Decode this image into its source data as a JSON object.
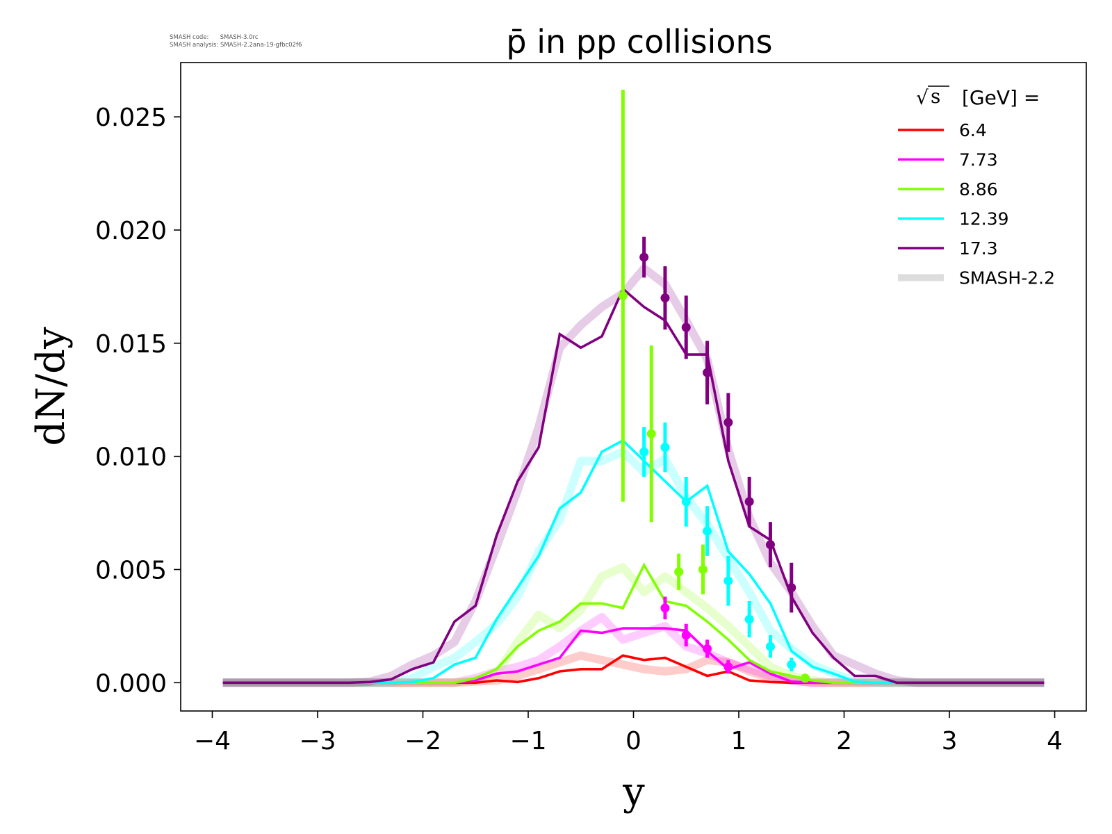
{
  "meta": {
    "code_line": "SMASH code:      SMASH-3.0rc",
    "analysis_line": "SMASH analysis: SMASH-2.2ana-19-gfbc02f6"
  },
  "chart_data": {
    "type": "line",
    "title": "p̄ in pp collisions",
    "xlabel": "y",
    "ylabel": "dN/dy",
    "xlim": [
      -4.3,
      4.3
    ],
    "ylim": [
      -0.00125,
      0.0274
    ],
    "xticks": [
      -4,
      -3,
      -2,
      -1,
      0,
      1,
      2,
      3,
      4
    ],
    "xtick_labels": [
      "−4",
      "−3",
      "−2",
      "−1",
      "0",
      "1",
      "2",
      "3",
      "4"
    ],
    "yticks": [
      0.0,
      0.005,
      0.01,
      0.015,
      0.02,
      0.025
    ],
    "ytick_labels": [
      "0.000",
      "0.005",
      "0.010",
      "0.015",
      "0.020",
      "0.025"
    ],
    "grid": false,
    "legend": {
      "placement": "top-right",
      "title_sqrt": "s",
      "title_text": "[GeV] =",
      "entries": [
        "6.4",
        "7.73",
        "8.86",
        "12.39",
        "17.3",
        "SMASH-2.2"
      ]
    },
    "x": [
      -3.9,
      -3.7,
      -3.5,
      -3.3,
      -3.1,
      -2.9,
      -2.7,
      -2.5,
      -2.3,
      -2.1,
      -1.9,
      -1.7,
      -1.5,
      -1.3,
      -1.1,
      -0.9,
      -0.7,
      -0.5,
      -0.3,
      -0.1,
      0.1,
      0.3,
      0.5,
      0.7,
      0.9,
      1.1,
      1.3,
      1.5,
      1.7,
      1.9,
      2.1,
      2.3,
      2.5,
      2.7,
      2.9,
      3.1,
      3.3,
      3.5,
      3.7,
      3.9
    ],
    "series": [
      {
        "name": "6.4",
        "color": "#ff0000",
        "values": [
          0,
          0,
          0,
          0,
          0,
          0,
          0,
          0,
          0,
          0,
          0,
          0,
          0,
          0.0001,
          3e-05,
          0.0002,
          0.0005,
          0.0006,
          0.0006,
          0.0012,
          0.001,
          0.0011,
          0.0007,
          0.0003,
          0.0005,
          0.0001,
          3e-05,
          0,
          0,
          0,
          0,
          0,
          0,
          0,
          0,
          0,
          0,
          0,
          0,
          0
        ],
        "smash22": [
          0,
          0,
          0,
          0,
          0,
          0,
          0,
          0,
          0,
          0,
          0,
          0,
          5e-05,
          0.0001,
          0.0003,
          0.0006,
          0.0009,
          0.0012,
          0.001,
          0.0008,
          0.0006,
          0.0005,
          0.0006,
          0.001,
          0.0009,
          0.0005,
          0.0002,
          0.0001,
          0,
          0,
          0,
          0,
          0,
          0,
          0,
          0,
          0,
          0,
          0,
          0
        ],
        "points": []
      },
      {
        "name": "7.73",
        "color": "#ff00ff",
        "values": [
          0,
          0,
          0,
          0,
          0,
          0,
          0,
          0,
          0,
          0,
          0,
          0,
          0.0001,
          0.0004,
          0.0005,
          0.0008,
          0.0011,
          0.0023,
          0.0022,
          0.0024,
          0.0024,
          0.0024,
          0.0023,
          0.0014,
          0.0006,
          0.0009,
          0.0004,
          5e-05,
          0,
          0,
          0,
          0,
          0,
          0,
          0,
          0,
          0,
          0,
          0,
          0
        ],
        "smash22": [
          0,
          0,
          0,
          0,
          0,
          0,
          0,
          0,
          0,
          0,
          0,
          0,
          0.0002,
          0.0005,
          0.0007,
          0.001,
          0.0016,
          0.0023,
          0.0029,
          0.0019,
          0.0022,
          0.0025,
          0.0016,
          0.0013,
          0.0009,
          0.0006,
          0.0003,
          0.0001,
          0,
          0,
          0,
          0,
          0,
          0,
          0,
          0,
          0,
          0,
          0,
          0
        ],
        "points": [
          {
            "x": 0.3,
            "y": 0.0033,
            "err": 0.0005
          },
          {
            "x": 0.5,
            "y": 0.0021,
            "err": 0.0005
          },
          {
            "x": 0.7,
            "y": 0.0015,
            "err": 0.0004
          },
          {
            "x": 0.9,
            "y": 0.0007,
            "err": 0.0003
          }
        ]
      },
      {
        "name": "8.86",
        "color": "#80ff00",
        "values": [
          0,
          0,
          0,
          0,
          0,
          0,
          0,
          0,
          0,
          0,
          0,
          0,
          0.0002,
          0.0006,
          0.0016,
          0.0023,
          0.0027,
          0.0035,
          0.0035,
          0.0033,
          0.0052,
          0.0036,
          0.0034,
          0.0027,
          0.0019,
          0.001,
          0.0005,
          0.0003,
          0.0001,
          0,
          0,
          0,
          0,
          0,
          0,
          0,
          0,
          0,
          0,
          0
        ],
        "smash22": [
          0,
          0,
          0,
          0,
          0,
          0,
          0,
          0,
          0,
          0,
          0,
          0,
          0.0001,
          0.0004,
          0.0018,
          0.003,
          0.0024,
          0.0032,
          0.0047,
          0.0051,
          0.004,
          0.0047,
          0.004,
          0.0033,
          0.0025,
          0.0016,
          0.0007,
          0.0003,
          0.0001,
          0,
          0,
          0,
          0,
          0,
          0,
          0,
          0,
          0,
          0,
          0
        ],
        "points": [
          {
            "x": -0.1,
            "y": 0.0171,
            "err": 0.0091
          },
          {
            "x": 0.17,
            "y": 0.011,
            "err": 0.0039
          },
          {
            "x": 0.43,
            "y": 0.0049,
            "err": 0.0008
          },
          {
            "x": 0.66,
            "y": 0.005,
            "err": 0.0011
          },
          {
            "x": 1.63,
            "y": 0.0002,
            "err": 0.0001
          }
        ]
      },
      {
        "name": "12.39",
        "color": "#00ffff",
        "values": [
          0,
          0,
          0,
          0,
          0,
          0,
          0,
          0,
          0,
          3e-05,
          0.0002,
          0.0008,
          0.0011,
          0.0028,
          0.0042,
          0.0056,
          0.0077,
          0.0084,
          0.0102,
          0.0107,
          0.0098,
          0.0089,
          0.008,
          0.0087,
          0.0058,
          0.0048,
          0.0035,
          0.0014,
          0.0007,
          0.0004,
          5e-05,
          0,
          0,
          0,
          0,
          0,
          0,
          0,
          0,
          0
        ],
        "smash22": [
          0,
          0,
          0,
          0,
          0,
          0,
          0,
          0,
          0,
          0.0002,
          0.0007,
          0.0011,
          0.0018,
          0.0026,
          0.0038,
          0.0058,
          0.0072,
          0.0098,
          0.0098,
          0.0102,
          0.0093,
          0.0099,
          0.0082,
          0.007,
          0.0055,
          0.004,
          0.0023,
          0.0015,
          0.0008,
          0.0004,
          0.0001,
          0,
          0,
          0,
          0,
          0,
          0,
          0,
          0,
          0
        ],
        "points": [
          {
            "x": 0.1,
            "y": 0.0102,
            "err": 0.0011
          },
          {
            "x": 0.3,
            "y": 0.0104,
            "err": 0.0011
          },
          {
            "x": 0.5,
            "y": 0.008,
            "err": 0.0011
          },
          {
            "x": 0.7,
            "y": 0.0067,
            "err": 0.0011
          },
          {
            "x": 0.9,
            "y": 0.0045,
            "err": 0.0011
          },
          {
            "x": 1.1,
            "y": 0.0028,
            "err": 0.0008
          },
          {
            "x": 1.3,
            "y": 0.0016,
            "err": 0.0005
          },
          {
            "x": 1.5,
            "y": 0.0008,
            "err": 0.0003
          }
        ]
      },
      {
        "name": "17.3",
        "color": "#800080",
        "values": [
          0,
          0,
          0,
          0,
          0,
          0,
          0,
          3e-05,
          0.00015,
          0.0006,
          0.0009,
          0.0027,
          0.0034,
          0.0065,
          0.0089,
          0.0104,
          0.0154,
          0.0148,
          0.0153,
          0.0174,
          0.0166,
          0.016,
          0.0145,
          0.0145,
          0.0098,
          0.0069,
          0.0063,
          0.0038,
          0.0022,
          0.0011,
          0.0003,
          0.0003,
          0,
          0,
          0,
          0,
          0,
          0,
          0,
          0
        ],
        "smash22": [
          0,
          0,
          0,
          0,
          0,
          0,
          0,
          5e-05,
          0.0003,
          0.0008,
          0.0012,
          0.0018,
          0.0036,
          0.006,
          0.0085,
          0.0113,
          0.0148,
          0.0158,
          0.0166,
          0.0172,
          0.0183,
          0.0176,
          0.016,
          0.0143,
          0.0103,
          0.0073,
          0.0053,
          0.004,
          0.0025,
          0.0012,
          0.0008,
          0.0004,
          0.0001,
          0,
          0,
          0,
          0,
          0,
          0,
          0
        ],
        "points": [
          {
            "x": 0.1,
            "y": 0.0188,
            "err": 0.0009
          },
          {
            "x": 0.3,
            "y": 0.017,
            "err": 0.0014
          },
          {
            "x": 0.5,
            "y": 0.0157,
            "err": 0.0014
          },
          {
            "x": 0.7,
            "y": 0.0137,
            "err": 0.0014
          },
          {
            "x": 0.9,
            "y": 0.0115,
            "err": 0.0013
          },
          {
            "x": 1.1,
            "y": 0.008,
            "err": 0.0011
          },
          {
            "x": 1.3,
            "y": 0.0061,
            "err": 0.001
          },
          {
            "x": 1.5,
            "y": 0.0042,
            "err": 0.0011
          }
        ]
      }
    ],
    "smash22_legend_color": "#dddddd"
  }
}
